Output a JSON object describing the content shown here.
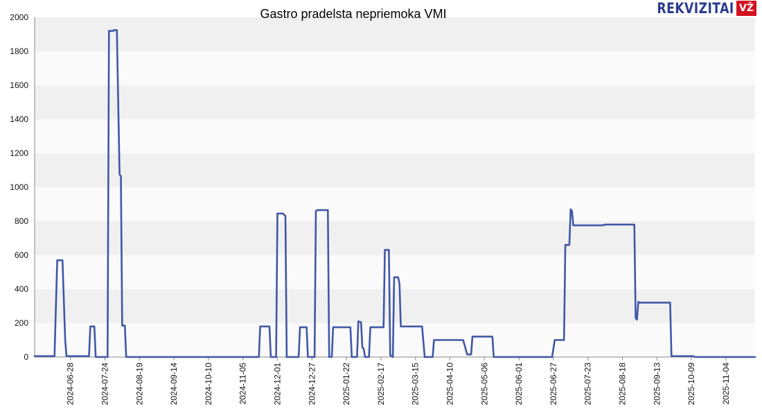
{
  "brand": {
    "name": "REKVIZITAI",
    "badge": "VŽ",
    "color": "#2b3c8f",
    "badge_color": "#d4121f"
  },
  "chart_data": {
    "type": "line",
    "title": "Gastro pradelsta nepriemoka VMI",
    "xlabel": "",
    "ylabel": "",
    "ylim": [
      0,
      2000
    ],
    "yticks": [
      0,
      200,
      400,
      600,
      800,
      1000,
      1200,
      1400,
      1600,
      1800,
      2000
    ],
    "xlim": [
      "2024-06-01",
      "2025-11-26"
    ],
    "xticks": [
      "2024-06-28",
      "2024-07-24",
      "2024-08-19",
      "2024-09-14",
      "2024-10-10",
      "2024-11-05",
      "2024-12-01",
      "2024-12-27",
      "2025-01-22",
      "2025-02-17",
      "2025-03-15",
      "2025-04-10",
      "2025-05-06",
      "2025-06-01",
      "2025-06-27",
      "2025-07-23",
      "2025-08-18",
      "2025-09-13",
      "2025-10-09",
      "2025-11-04"
    ],
    "grid": "horizontal alternating bands",
    "line_color": "#3f57a6",
    "series": [
      {
        "points": [
          [
            "2024-06-01",
            5
          ],
          [
            "2024-06-16",
            5
          ],
          [
            "2024-06-18",
            570
          ],
          [
            "2024-06-22",
            570
          ],
          [
            "2024-06-24",
            100
          ],
          [
            "2024-06-25",
            5
          ],
          [
            "2024-07-12",
            5
          ],
          [
            "2024-07-13",
            180
          ],
          [
            "2024-07-16",
            180
          ],
          [
            "2024-07-17",
            0
          ],
          [
            "2024-07-21",
            0
          ],
          [
            "2024-07-26",
            0
          ],
          [
            "2024-07-27",
            1920
          ],
          [
            "2024-07-30",
            1920
          ],
          [
            "2024-07-31",
            1925
          ],
          [
            "2024-08-02",
            1925
          ],
          [
            "2024-08-04",
            1075
          ],
          [
            "2024-08-05",
            1065
          ],
          [
            "2024-08-06",
            185
          ],
          [
            "2024-08-08",
            185
          ],
          [
            "2024-08-09",
            0
          ],
          [
            "2024-11-17",
            0
          ],
          [
            "2024-11-18",
            180
          ],
          [
            "2024-11-25",
            180
          ],
          [
            "2024-11-26",
            0
          ],
          [
            "2024-11-30",
            0
          ],
          [
            "2024-12-01",
            845
          ],
          [
            "2024-12-05",
            845
          ],
          [
            "2024-12-07",
            830
          ],
          [
            "2024-12-08",
            0
          ],
          [
            "2024-12-17",
            0
          ],
          [
            "2024-12-18",
            175
          ],
          [
            "2024-12-23",
            175
          ],
          [
            "2024-12-24",
            0
          ],
          [
            "2024-12-29",
            0
          ],
          [
            "2024-12-30",
            860
          ],
          [
            "2024-12-31",
            865
          ],
          [
            "2025-01-08",
            865
          ],
          [
            "2025-01-09",
            0
          ],
          [
            "2025-01-11",
            0
          ],
          [
            "2025-01-12",
            175
          ],
          [
            "2025-01-25",
            175
          ],
          [
            "2025-01-26",
            0
          ],
          [
            "2025-01-30",
            0
          ],
          [
            "2025-01-31",
            210
          ],
          [
            "2025-02-02",
            205
          ],
          [
            "2025-02-03",
            55
          ],
          [
            "2025-02-04",
            50
          ],
          [
            "2025-02-05",
            0
          ],
          [
            "2025-02-08",
            0
          ],
          [
            "2025-02-09",
            175
          ],
          [
            "2025-02-19",
            175
          ],
          [
            "2025-02-20",
            630
          ],
          [
            "2025-02-23",
            630
          ],
          [
            "2025-02-24",
            10
          ],
          [
            "2025-02-26",
            0
          ],
          [
            "2025-02-27",
            470
          ],
          [
            "2025-03-02",
            470
          ],
          [
            "2025-03-03",
            430
          ],
          [
            "2025-03-04",
            180
          ],
          [
            "2025-03-20",
            180
          ],
          [
            "2025-03-22",
            0
          ],
          [
            "2025-03-28",
            0
          ],
          [
            "2025-03-29",
            100
          ],
          [
            "2025-04-20",
            100
          ],
          [
            "2025-04-23",
            15
          ],
          [
            "2025-04-26",
            15
          ],
          [
            "2025-04-27",
            120
          ],
          [
            "2025-05-12",
            120
          ],
          [
            "2025-05-13",
            0
          ],
          [
            "2025-06-26",
            0
          ],
          [
            "2025-06-28",
            100
          ],
          [
            "2025-07-05",
            100
          ],
          [
            "2025-07-06",
            660
          ],
          [
            "2025-07-09",
            660
          ],
          [
            "2025-07-10",
            870
          ],
          [
            "2025-07-11",
            860
          ],
          [
            "2025-07-12",
            775
          ],
          [
            "2025-08-03",
            775
          ],
          [
            "2025-08-05",
            780
          ],
          [
            "2025-08-27",
            780
          ],
          [
            "2025-08-28",
            230
          ],
          [
            "2025-08-29",
            220
          ],
          [
            "2025-08-30",
            325
          ],
          [
            "2025-08-31",
            320
          ],
          [
            "2025-09-23",
            320
          ],
          [
            "2025-09-24",
            5
          ],
          [
            "2025-10-10",
            5
          ],
          [
            "2025-10-12",
            0
          ],
          [
            "2025-11-26",
            0
          ]
        ]
      }
    ]
  }
}
